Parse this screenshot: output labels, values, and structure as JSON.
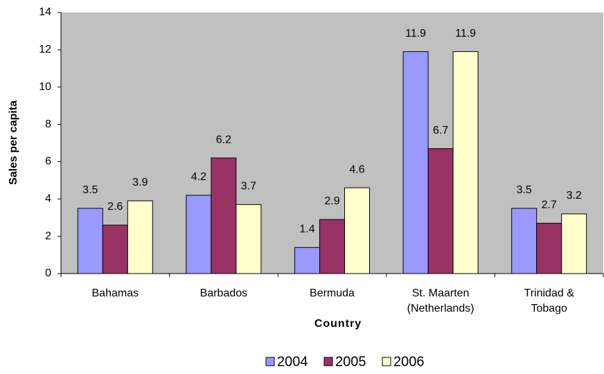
{
  "chart_data": {
    "type": "bar",
    "x_label": "Country",
    "y_label": "Sales per capita",
    "categories": [
      "Bahamas",
      "Barbados",
      "Bermuda",
      "St. Maarten\n(Netherlands)",
      "Trinidad &\nTobago"
    ],
    "series": [
      {
        "name": "2004",
        "color": "#9999ff",
        "values": [
          3.5,
          4.2,
          1.4,
          11.9,
          3.5
        ]
      },
      {
        "name": "2005",
        "color": "#993366",
        "values": [
          2.6,
          6.2,
          2.9,
          6.7,
          2.7
        ]
      },
      {
        "name": "2006",
        "color": "#ffffcc",
        "values": [
          3.9,
          3.7,
          4.6,
          11.9,
          3.2
        ]
      }
    ],
    "ylim": [
      0,
      14
    ],
    "yticks": [
      0,
      2,
      4,
      6,
      8,
      10,
      12,
      14
    ],
    "plot_background": "#c0c0c0",
    "legend": "bottom"
  }
}
